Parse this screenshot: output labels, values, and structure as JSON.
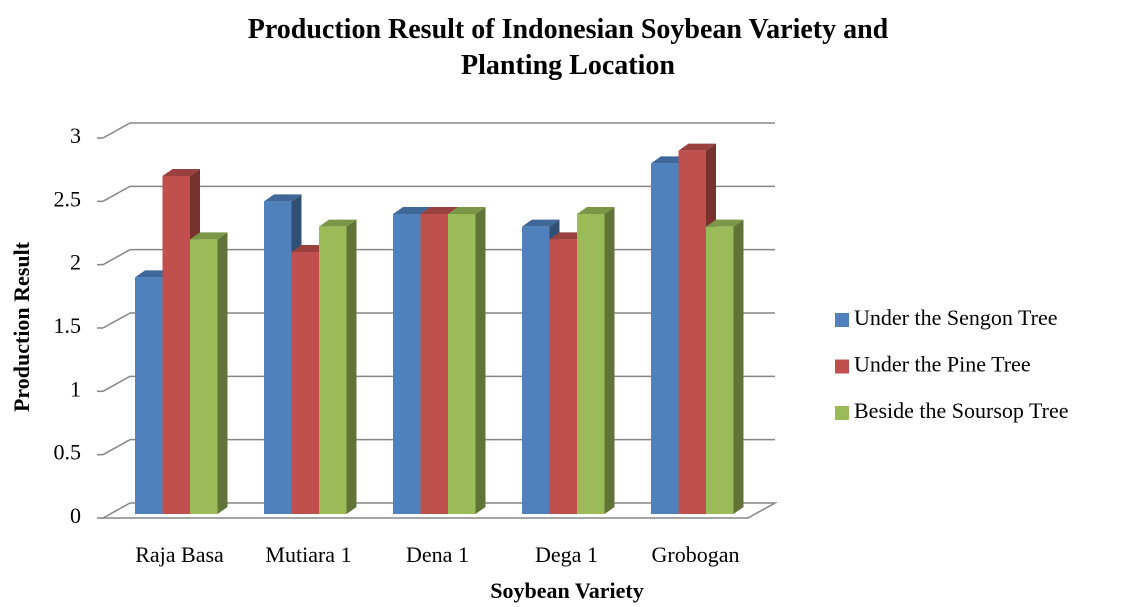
{
  "chart_data": {
    "type": "bar3d",
    "title": "Production Result of Indonesian Soybean Variety and Planting Location",
    "x_label": "Soybean Variety",
    "y_label": "Production Result",
    "categories": [
      "Raja Basa",
      "Mutiara 1",
      "Dena 1",
      "Dega 1",
      "Grobogan"
    ],
    "series": [
      {
        "name": "Under the Sengon Tree",
        "color": "#4f81bd",
        "values": [
          1.9,
          2.5,
          2.4,
          2.3,
          2.8
        ]
      },
      {
        "name": "Under the Pine Tree",
        "color": "#c0504d",
        "values": [
          2.7,
          2.1,
          2.4,
          2.2,
          2.9
        ]
      },
      {
        "name": "Beside the Soursop Tree",
        "color": "#9bbb59",
        "values": [
          2.2,
          2.3,
          2.4,
          2.4,
          2.3
        ]
      }
    ],
    "ylim": [
      0,
      3
    ],
    "yticks": [
      0,
      0.5,
      1,
      1.5,
      2,
      2.5,
      3
    ],
    "grid": true,
    "legend": "right"
  }
}
